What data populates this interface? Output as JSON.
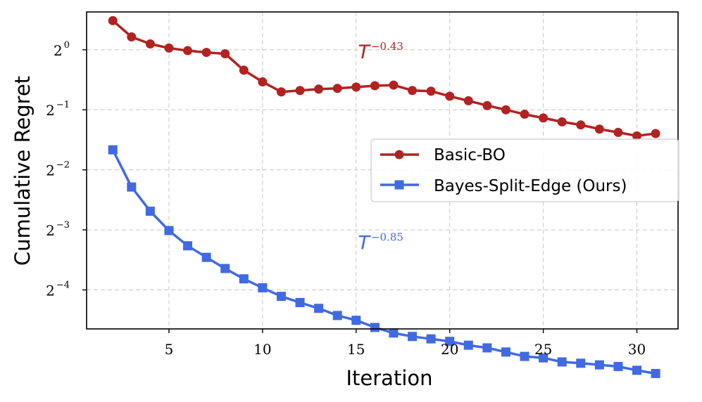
{
  "chart_data": {
    "type": "line",
    "title": "",
    "xlabel": "Iteration",
    "ylabel": "Cumulative Regret",
    "yscale": "log2",
    "xlim": [
      0.6,
      32.2
    ],
    "ylim_log2": [
      -4.65,
      0.63
    ],
    "grid": true,
    "legend_position": "center-right",
    "x_ticks": [
      5,
      10,
      15,
      20,
      25,
      30
    ],
    "y_ticks": [
      {
        "base": "2",
        "exp": "0",
        "log2": 0
      },
      {
        "base": "2",
        "exp": "−1",
        "log2": -1
      },
      {
        "base": "2",
        "exp": "−2",
        "log2": -2
      },
      {
        "base": "2",
        "exp": "−3",
        "log2": -3
      },
      {
        "base": "2",
        "exp": "−4",
        "log2": -4
      }
    ],
    "x": [
      2,
      3,
      4,
      5,
      6,
      7,
      8,
      9,
      10,
      11,
      12,
      13,
      14,
      15,
      16,
      17,
      18,
      19,
      20,
      21,
      22,
      23,
      24,
      25,
      26,
      27,
      28,
      29,
      30,
      31
    ],
    "series": [
      {
        "name": "Basic-BO",
        "color": "#b22222",
        "marker": "circle",
        "values": [
          1.4,
          1.16,
          1.07,
          1.02,
          0.99,
          0.97,
          0.955,
          0.79,
          0.69,
          0.615,
          0.625,
          0.635,
          0.64,
          0.65,
          0.66,
          0.665,
          0.625,
          0.62,
          0.585,
          0.555,
          0.525,
          0.5,
          0.475,
          0.455,
          0.435,
          0.42,
          0.4,
          0.385,
          0.37,
          0.38
        ]
      },
      {
        "name": "Bayes-Split-Edge (Ours)",
        "color": "#4169e1",
        "marker": "square",
        "values": [
          0.315,
          0.205,
          0.155,
          0.124,
          0.104,
          0.091,
          0.08,
          0.071,
          0.064,
          0.058,
          0.054,
          0.0505,
          0.0465,
          0.044,
          0.0405,
          0.038,
          0.0365,
          0.0355,
          0.0345,
          0.033,
          0.032,
          0.0305,
          0.029,
          0.0285,
          0.0272,
          0.0268,
          0.0263,
          0.0258,
          0.0247,
          0.0238
        ]
      }
    ],
    "annotations": [
      {
        "text_base": "T",
        "text_exp": "−0.43",
        "color": "#b22222",
        "x": 15.1,
        "log2": -0.14
      },
      {
        "text_base": "T",
        "text_exp": "−0.85",
        "color": "#4169e1",
        "x": 15.1,
        "log2": -3.32
      }
    ]
  }
}
